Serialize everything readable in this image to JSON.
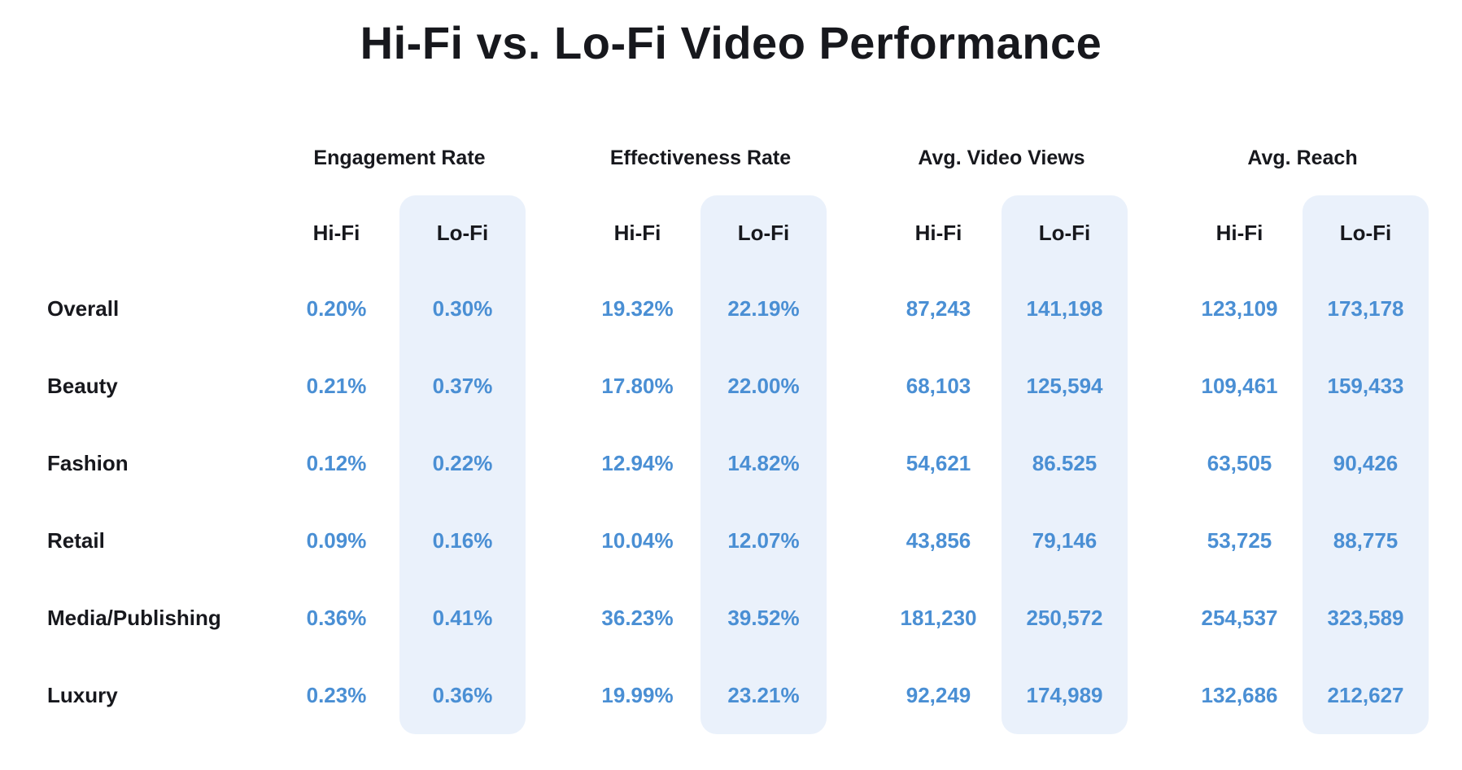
{
  "title": "Hi-Fi vs. Lo-Fi Video Performance",
  "colors": {
    "accent_blue": "#4a8fd4",
    "lofi_column_bg": "#eaf1fb",
    "text_dark": "#17181d"
  },
  "chart_data": {
    "type": "table",
    "title": "Hi-Fi vs. Lo-Fi Video Performance",
    "column_groups": [
      {
        "label": "Engagement Rate"
      },
      {
        "label": "Effectiveness Rate"
      },
      {
        "label": "Avg. Video Views"
      },
      {
        "label": "Avg. Reach"
      }
    ],
    "sub_columns": {
      "hifi": "Hi-Fi",
      "lofi": "Lo-Fi"
    },
    "value_order": [
      "Engagement Rate Hi-Fi",
      "Engagement Rate Lo-Fi",
      "Effectiveness Rate Hi-Fi",
      "Effectiveness Rate Lo-Fi",
      "Avg. Video Views Hi-Fi",
      "Avg. Video Views Lo-Fi",
      "Avg. Reach Hi-Fi",
      "Avg. Reach Lo-Fi"
    ],
    "rows": [
      {
        "label": "Overall",
        "values": [
          "0.20%",
          "0.30%",
          "19.32%",
          "22.19%",
          "87,243",
          "141,198",
          "123,109",
          "173,178"
        ]
      },
      {
        "label": "Beauty",
        "values": [
          "0.21%",
          "0.37%",
          "17.80%",
          "22.00%",
          "68,103",
          "125,594",
          "109,461",
          "159,433"
        ]
      },
      {
        "label": "Fashion",
        "values": [
          "0.12%",
          "0.22%",
          "12.94%",
          "14.82%",
          "54,621",
          "86.525",
          "63,505",
          "90,426"
        ]
      },
      {
        "label": "Retail",
        "values": [
          "0.09%",
          "0.16%",
          "10.04%",
          "12.07%",
          "43,856",
          "79,146",
          "53,725",
          "88,775"
        ]
      },
      {
        "label": "Media/Publishing",
        "values": [
          "0.36%",
          "0.41%",
          "36.23%",
          "39.52%",
          "181,230",
          "250,572",
          "254,537",
          "323,589"
        ]
      },
      {
        "label": "Luxury",
        "values": [
          "0.23%",
          "0.36%",
          "19.99%",
          "23.21%",
          "92,249",
          "174,989",
          "132,686",
          "212,627"
        ]
      }
    ]
  }
}
